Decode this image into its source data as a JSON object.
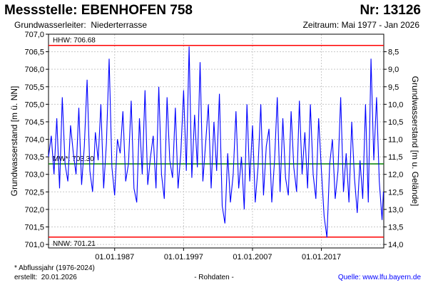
{
  "header": {
    "title": "Messstelle: EBENHOFEN 758",
    "number": "Nr: 13126",
    "aquifer_label": "Grundwasserleiter:",
    "aquifer": "Niederterrasse",
    "period": "Zeitraum: Mai 1977 - Jan 2026"
  },
  "footer": {
    "note": "* Abflussjahr (1976-2024)",
    "created_label": "erstellt:",
    "created": "20.01.2026",
    "center": "- Rohdaten -",
    "source": "Quelle: www.lfu.bayern.de"
  },
  "colors": {
    "series": "#0000ff",
    "hhw": "#ff0000",
    "nnw": "#ff0000",
    "mw": "#008000",
    "grid": "#c8c8c8"
  },
  "chart_data": {
    "type": "line",
    "title": "",
    "xlabel": "",
    "ylabel": "Grundwasserstand [m ü. NN]",
    "y2label": "Grundwasserstand [m u. Gelände]",
    "grid": true,
    "xlim": [
      1977.4,
      2026.05
    ],
    "ylim": [
      700.9,
      707.0
    ],
    "y2lim": [
      14.1,
      8.0
    ],
    "x_ticks": [
      1987,
      1997,
      2007,
      2017
    ],
    "x_tick_labels": [
      "01.01.1987",
      "01.01.1997",
      "01.01.2007",
      "01.01.2017"
    ],
    "y_ticks": [
      701.0,
      701.5,
      702.0,
      702.5,
      703.0,
      703.5,
      704.0,
      704.5,
      705.0,
      705.5,
      706.0,
      706.5,
      707.0
    ],
    "y_tick_labels": [
      "701,0",
      "701,5",
      "702,0",
      "702,5",
      "703,0",
      "703,5",
      "704,0",
      "704,5",
      "705,0",
      "705,5",
      "706,0",
      "706,5",
      "707,0"
    ],
    "y2_ticks": [
      8.5,
      9.0,
      9.5,
      10.0,
      10.5,
      11.0,
      11.5,
      12.0,
      12.5,
      13.0,
      13.5,
      14.0
    ],
    "y2_tick_labels": [
      "8,5",
      "9,0",
      "9,5",
      "10,0",
      "10,5",
      "11,0",
      "11,5",
      "12,0",
      "12,5",
      "13,0",
      "13,5",
      "14,0"
    ],
    "reference_lines": [
      {
        "name": "HHW",
        "label": "HHW: 706.68",
        "value": 706.68
      },
      {
        "name": "MW",
        "label": "MW*: 703.30",
        "value": 703.3
      },
      {
        "name": "NNW",
        "label": "NNW: 701.21",
        "value": 701.21
      }
    ],
    "series": [
      {
        "x": [
          1977.4,
          1977.8,
          1978.2,
          1978.6,
          1979.0,
          1979.4,
          1979.8,
          1980.2,
          1980.6,
          1981.0,
          1981.4,
          1981.8,
          1982.2,
          1982.6,
          1983.0,
          1983.4,
          1983.8,
          1984.2,
          1984.6,
          1985.0,
          1985.4,
          1985.8,
          1986.2,
          1986.6,
          1987.0,
          1987.4,
          1987.8,
          1988.2,
          1988.6,
          1989.0,
          1989.4,
          1989.8,
          1990.2,
          1990.6,
          1991.0,
          1991.4,
          1991.8,
          1992.2,
          1992.6,
          1993.0,
          1993.4,
          1993.8,
          1994.2,
          1994.6,
          1995.0,
          1995.4,
          1995.8,
          1996.2,
          1996.6,
          1997.0,
          1997.4,
          1997.8,
          1998.2,
          1998.6,
          1999.0,
          1999.4,
          1999.8,
          2000.2,
          2000.6,
          2001.0,
          2001.4,
          2001.8,
          2002.2,
          2002.6,
          2003.0,
          2003.4,
          2003.8,
          2004.2,
          2004.6,
          2005.0,
          2005.4,
          2005.8,
          2006.2,
          2006.6,
          2007.0,
          2007.4,
          2007.8,
          2008.2,
          2008.6,
          2009.0,
          2009.4,
          2009.8,
          2010.2,
          2010.6,
          2011.0,
          2011.4,
          2011.8,
          2012.2,
          2012.6,
          2013.0,
          2013.4,
          2013.8,
          2014.2,
          2014.6,
          2015.0,
          2015.4,
          2015.8,
          2016.2,
          2016.6,
          2017.0,
          2017.4,
          2017.8,
          2018.2,
          2018.6,
          2019.0,
          2019.4,
          2019.8,
          2020.2,
          2020.6,
          2021.0,
          2021.4,
          2021.8,
          2022.2,
          2022.6,
          2023.0,
          2023.4,
          2023.8,
          2024.2,
          2024.6,
          2025.0,
          2025.4,
          2025.8,
          2026.0
        ],
        "values": [
          703.5,
          704.1,
          703.0,
          704.6,
          702.6,
          705.2,
          703.3,
          702.8,
          704.4,
          703.6,
          703.0,
          704.9,
          702.7,
          703.8,
          705.7,
          703.1,
          702.5,
          704.2,
          703.4,
          705.0,
          702.6,
          703.9,
          706.3,
          703.2,
          702.4,
          704.0,
          703.6,
          704.8,
          702.8,
          703.3,
          705.1,
          702.6,
          702.2,
          704.6,
          703.0,
          705.4,
          702.7,
          703.5,
          704.1,
          702.6,
          705.5,
          703.0,
          702.3,
          705.2,
          703.4,
          702.9,
          704.9,
          702.6,
          703.6,
          705.4,
          703.1,
          706.65,
          702.9,
          704.7,
          703.2,
          706.2,
          702.8,
          703.9,
          705.0,
          702.6,
          704.5,
          703.1,
          705.3,
          702.1,
          701.6,
          703.6,
          702.2,
          703.0,
          704.8,
          702.6,
          703.5,
          702.0,
          705.0,
          702.8,
          704.4,
          702.2,
          703.2,
          705.0,
          702.4,
          703.8,
          704.3,
          702.2,
          703.4,
          705.2,
          702.5,
          704.6,
          702.9,
          702.4,
          704.8,
          703.2,
          702.5,
          705.1,
          703.0,
          704.2,
          702.6,
          705.0,
          703.0,
          702.3,
          704.6,
          703.1,
          701.8,
          701.2,
          703.3,
          704.0,
          702.3,
          703.1,
          705.2,
          702.5,
          703.6,
          702.2,
          704.5,
          702.9,
          701.9,
          703.4,
          702.3,
          705.0,
          702.2,
          706.3,
          703.4,
          705.2,
          702.8,
          701.7,
          702.5
        ]
      }
    ]
  }
}
